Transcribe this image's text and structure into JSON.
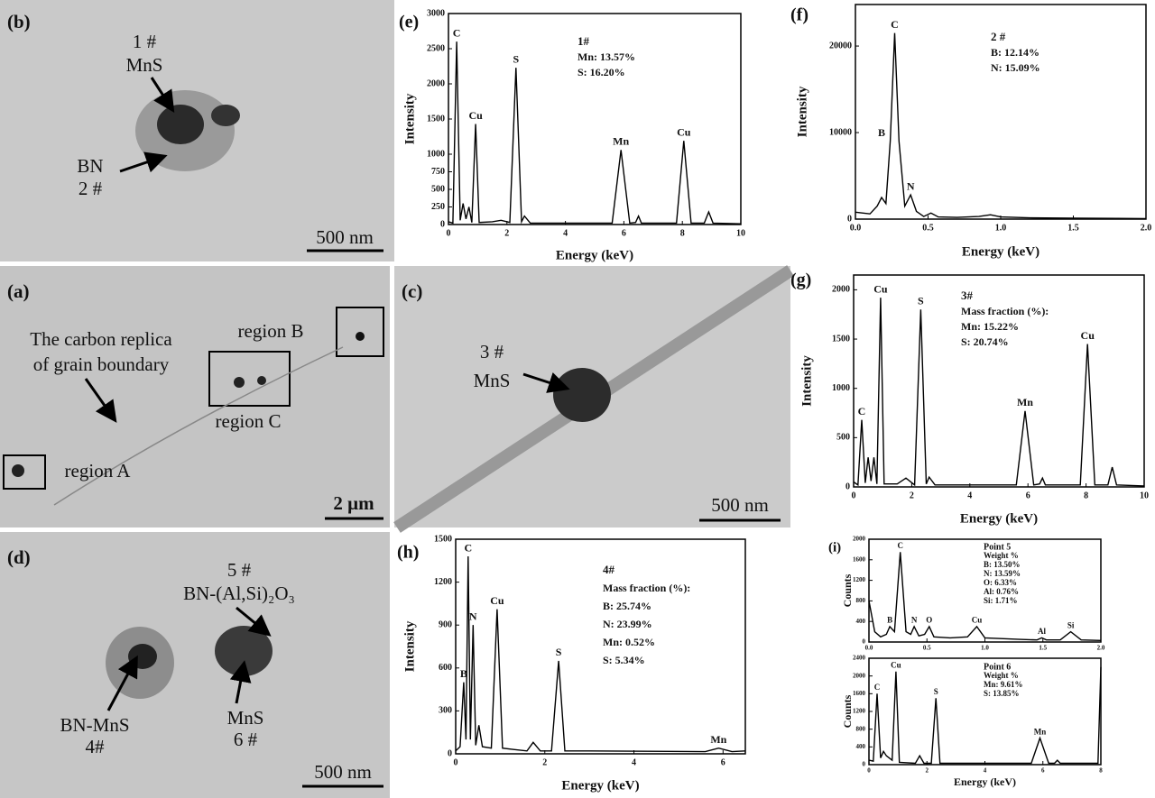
{
  "images": [
    {
      "label": "(b)",
      "texts": [
        "1 #",
        "MnS",
        "BN",
        "2 #"
      ],
      "scale": "500 nm"
    },
    {
      "label": "(a)",
      "texts": [
        "region B",
        "The carbon replica",
        "of grain boundary",
        "region C",
        "region A"
      ],
      "scale": "2 μm"
    },
    {
      "label": "(c)",
      "texts": [
        "3 #",
        "MnS"
      ],
      "scale": "500 nm"
    },
    {
      "label": "(d)",
      "texts": [
        "5 #",
        "BN-(Al,Si)₂O₃",
        "BN-MnS",
        "4#",
        "MnS",
        "6 #"
      ],
      "scale": "500 nm"
    }
  ],
  "chart_data": [
    {
      "type": "line",
      "panel_label": "(e)",
      "xlabel": "Energy  (keV)",
      "ylabel": "Intensity",
      "color": "#000000",
      "notes": [
        "1#",
        "Mn: 13.57%",
        "S:   16.20%"
      ],
      "xlim": [
        0,
        10
      ],
      "xticks": [
        0,
        2,
        4,
        6,
        8,
        10
      ],
      "ylim": [
        0,
        3000
      ],
      "yticks": [
        0,
        250,
        500,
        750,
        1000,
        1500,
        2000,
        2500,
        3000
      ],
      "x": [
        0,
        0.15,
        0.28,
        0.4,
        0.5,
        0.6,
        0.7,
        0.8,
        0.93,
        1.05,
        1.5,
        1.8,
        2.1,
        2.31,
        2.5,
        2.6,
        2.8,
        5.6,
        5.9,
        6.2,
        6.4,
        6.5,
        6.6,
        7.8,
        8.05,
        8.3,
        8.75,
        8.9,
        9.05,
        10
      ],
      "values": [
        40,
        20,
        2600,
        60,
        300,
        80,
        250,
        30,
        1430,
        30,
        40,
        60,
        30,
        2230,
        40,
        120,
        20,
        20,
        1060,
        20,
        30,
        120,
        20,
        20,
        1190,
        20,
        20,
        180,
        20,
        10
      ],
      "annotations": [
        {
          "text": "C",
          "x": 0.28
        },
        {
          "text": "Cu",
          "x": 0.93
        },
        {
          "text": "S",
          "x": 2.31
        },
        {
          "text": "Mn",
          "x": 5.9
        },
        {
          "text": "Cu",
          "x": 8.05
        }
      ]
    },
    {
      "type": "line",
      "panel_label": "(f)",
      "xlabel": "Energy  (keV)",
      "ylabel": "Intensity",
      "color": "#000000",
      "notes": [
        "2 #",
        "B: 12.14%",
        "N: 15.09%"
      ],
      "xlim": [
        0,
        2
      ],
      "xticks": [
        {
          "value": 0,
          "label": "0.0"
        },
        0.5,
        {
          "value": 1,
          "label": "1.0"
        },
        1.5,
        {
          "value": 2,
          "label": "2.0"
        }
      ],
      "ylim": [
        0,
        24800
      ],
      "yticks": [
        0,
        10000,
        20000
      ],
      "x": [
        0,
        0.1,
        0.15,
        0.18,
        0.21,
        0.24,
        0.27,
        0.3,
        0.34,
        0.38,
        0.42,
        0.47,
        0.52,
        0.57,
        0.7,
        0.85,
        0.93,
        1.0,
        1.2,
        1.5,
        1.8,
        2.0
      ],
      "values": [
        800,
        600,
        1500,
        2500,
        1800,
        9000,
        21500,
        9000,
        1500,
        2800,
        900,
        300,
        700,
        250,
        200,
        300,
        500,
        250,
        150,
        100,
        80,
        60
      ],
      "annotations": [
        {
          "text": "B",
          "x": 0.18
        },
        {
          "text": "C",
          "x": 0.27
        },
        {
          "text": "N",
          "x": 0.38
        }
      ]
    },
    {
      "type": "line",
      "panel_label": "(g)",
      "xlabel": "Energy  (keV)",
      "ylabel": "Intensity",
      "color": "#000000",
      "notes": [
        "3#",
        "Mass fraction (%):",
        "Mn:  15.22%",
        "S:    20.74%"
      ],
      "xlim": [
        0,
        10
      ],
      "xticks": [
        0,
        2,
        4,
        6,
        8,
        10
      ],
      "ylim": [
        0,
        2150
      ],
      "yticks": [
        0,
        500,
        1000,
        1500,
        2000
      ],
      "x": [
        0,
        0.15,
        0.28,
        0.4,
        0.5,
        0.6,
        0.7,
        0.8,
        0.93,
        1.05,
        1.5,
        1.8,
        2.1,
        2.31,
        2.5,
        2.6,
        2.8,
        5.6,
        5.9,
        6.2,
        6.4,
        6.5,
        6.6,
        7.8,
        8.05,
        8.3,
        8.75,
        8.9,
        9.05,
        10
      ],
      "values": [
        50,
        20,
        680,
        40,
        300,
        60,
        300,
        30,
        1920,
        30,
        30,
        90,
        20,
        1800,
        30,
        100,
        20,
        20,
        770,
        20,
        30,
        90,
        20,
        20,
        1450,
        20,
        20,
        200,
        20,
        10
      ],
      "annotations": [
        {
          "text": "C",
          "x": 0.28
        },
        {
          "text": "Cu",
          "x": 0.93
        },
        {
          "text": "S",
          "x": 2.31
        },
        {
          "text": "Mn",
          "x": 5.9
        },
        {
          "text": "Cu",
          "x": 8.05
        }
      ]
    },
    {
      "type": "line",
      "panel_label": "(h)",
      "xlabel": "Energy   (keV)",
      "ylabel": "Intensity",
      "color": "#000000",
      "notes": [
        "4#",
        "Mass fraction (%):",
        "B:    25.74%",
        "N:    23.99%",
        "Mn:  0.52%",
        "S:    5.34%"
      ],
      "xlim": [
        0,
        6.5
      ],
      "xticks": [
        0,
        2,
        4,
        6
      ],
      "ylim": [
        0,
        1500
      ],
      "yticks": [
        0,
        300,
        600,
        900,
        1200,
        1500
      ],
      "x": [
        0,
        0.1,
        0.18,
        0.23,
        0.28,
        0.33,
        0.39,
        0.45,
        0.52,
        0.6,
        0.8,
        0.93,
        1.05,
        1.3,
        1.6,
        1.74,
        1.9,
        2.15,
        2.31,
        2.45,
        3.0,
        5.6,
        5.9,
        6.2,
        6.5
      ],
      "values": [
        20,
        50,
        500,
        100,
        1380,
        100,
        900,
        60,
        200,
        50,
        40,
        1010,
        40,
        30,
        20,
        80,
        20,
        20,
        650,
        20,
        20,
        15,
        40,
        15,
        20
      ],
      "annotations": [
        {
          "text": "B",
          "x": 0.18
        },
        {
          "text": "C",
          "x": 0.28
        },
        {
          "text": "N",
          "x": 0.39
        },
        {
          "text": "Cu",
          "x": 0.93
        },
        {
          "text": "S",
          "x": 2.31
        },
        {
          "text": "Mn",
          "x": 5.9
        }
      ]
    },
    {
      "type": "line",
      "panel_label": "(i)",
      "ylabel": "Counts",
      "color": "#000000",
      "notes": [
        "Point 5",
        "Weight %",
        "B:   13.50%",
        "N:   13.59%",
        "O:   6.33%",
        "Al:   0.76%",
        "Si:   1.71%"
      ],
      "xlim": [
        0,
        2
      ],
      "xticks": [
        {
          "value": 0,
          "label": "0.0"
        },
        0.5,
        {
          "value": 1,
          "label": "1.0"
        },
        1.5,
        {
          "value": 2,
          "label": "2.0"
        }
      ],
      "ylim": [
        0,
        2000
      ],
      "yticks": [
        0,
        400,
        800,
        1200,
        1600,
        2000
      ],
      "x": [
        0,
        0.05,
        0.1,
        0.15,
        0.18,
        0.22,
        0.27,
        0.32,
        0.36,
        0.39,
        0.43,
        0.48,
        0.52,
        0.56,
        0.7,
        0.85,
        0.93,
        1.0,
        1.3,
        1.45,
        1.49,
        1.53,
        1.65,
        1.74,
        1.83,
        2.0
      ],
      "values": [
        800,
        200,
        100,
        150,
        300,
        200,
        1750,
        200,
        150,
        300,
        120,
        150,
        300,
        100,
        80,
        100,
        300,
        80,
        50,
        40,
        80,
        40,
        40,
        200,
        40,
        30
      ],
      "annotations": [
        {
          "text": "B",
          "x": 0.18
        },
        {
          "text": "C",
          "x": 0.27
        },
        {
          "text": "N",
          "x": 0.39
        },
        {
          "text": "O",
          "x": 0.52
        },
        {
          "text": "Cu",
          "x": 0.93
        },
        {
          "text": "Al",
          "x": 1.49
        },
        {
          "text": "Si",
          "x": 1.74
        }
      ]
    },
    {
      "type": "line",
      "xlabel": "Energy (keV)",
      "ylabel": "Counts",
      "color": "#000000",
      "notes": [
        "Point 6",
        "Weight %",
        "Mn:  9.61%",
        "S:     13.85%"
      ],
      "xlim": [
        0,
        8
      ],
      "xticks": [
        0,
        2,
        4,
        6,
        8
      ],
      "ylim": [
        0,
        2400
      ],
      "yticks": [
        0,
        400,
        800,
        1200,
        1600,
        2000,
        2400
      ],
      "x": [
        0,
        0.15,
        0.28,
        0.4,
        0.5,
        0.6,
        0.8,
        0.93,
        1.05,
        1.6,
        1.75,
        1.9,
        2.15,
        2.31,
        2.45,
        5.6,
        5.9,
        6.2,
        6.4,
        6.5,
        6.6,
        7.9,
        8.0
      ],
      "values": [
        100,
        80,
        1600,
        150,
        300,
        200,
        100,
        2100,
        50,
        30,
        200,
        30,
        30,
        1500,
        30,
        30,
        600,
        30,
        30,
        100,
        30,
        30,
        2200
      ],
      "annotations": [
        {
          "text": "C",
          "x": 0.28
        },
        {
          "text": "Cu",
          "x": 0.93
        },
        {
          "text": "S",
          "x": 2.31
        },
        {
          "text": "Mn",
          "x": 5.9
        }
      ]
    }
  ]
}
